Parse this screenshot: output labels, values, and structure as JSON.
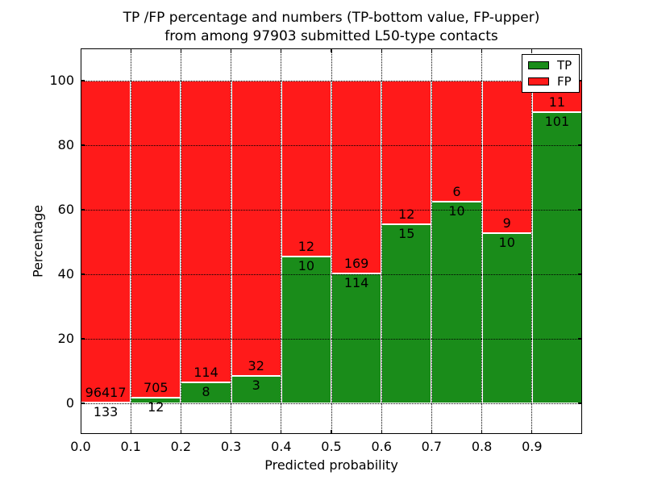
{
  "title": {
    "line1": "TP /FP percentage and numbers (TP-bottom value, FP-upper)",
    "line2": "from among 97903 submitted L50-type contacts"
  },
  "axes": {
    "xlabel": "Predicted probability",
    "ylabel": "Percentage",
    "ytick_labels": [
      "0",
      "20",
      "40",
      "60",
      "80",
      "100"
    ],
    "ytick_values": [
      0,
      20,
      40,
      60,
      80,
      100
    ],
    "xtick_labels": [
      "0.0",
      "0.1",
      "0.2",
      "0.3",
      "0.4",
      "0.5",
      "0.6",
      "0.7",
      "0.8",
      "0.9"
    ]
  },
  "legend": {
    "items": [
      {
        "label": "TP",
        "color": "#1a8c1a"
      },
      {
        "label": "FP",
        "color": "#ff1a1a"
      }
    ],
    "position": "upper right"
  },
  "chart_data": {
    "type": "bar",
    "stacked": true,
    "title": "TP /FP percentage and numbers (TP-bottom value, FP-upper) from among 97903 submitted L50-type contacts",
    "xlabel": "Predicted probability",
    "ylabel": "Percentage",
    "categories": [
      "0.0-0.1",
      "0.1-0.2",
      "0.2-0.3",
      "0.3-0.4",
      "0.4-0.5",
      "0.5-0.6",
      "0.6-0.7",
      "0.7-0.8",
      "0.8-0.9",
      "0.9-1.0"
    ],
    "series": [
      {
        "name": "TP",
        "color": "#1a8c1a",
        "counts": [
          133,
          12,
          8,
          3,
          10,
          114,
          15,
          10,
          10,
          101
        ],
        "percent": [
          0.14,
          1.67,
          6.56,
          8.57,
          45.45,
          40.28,
          55.56,
          62.5,
          52.63,
          90.18
        ]
      },
      {
        "name": "FP",
        "color": "#ff1a1a",
        "counts": [
          96417,
          705,
          114,
          32,
          12,
          169,
          12,
          6,
          9,
          11
        ],
        "percent": [
          99.86,
          98.33,
          93.44,
          91.43,
          54.55,
          59.72,
          44.44,
          37.5,
          47.37,
          9.82
        ]
      }
    ],
    "total_submitted": "97903",
    "xlim": [
      0.0,
      1.0
    ],
    "ylim": [
      -10,
      110
    ],
    "grid": true,
    "grid_style": "dotted",
    "legend_position": "upper right"
  }
}
